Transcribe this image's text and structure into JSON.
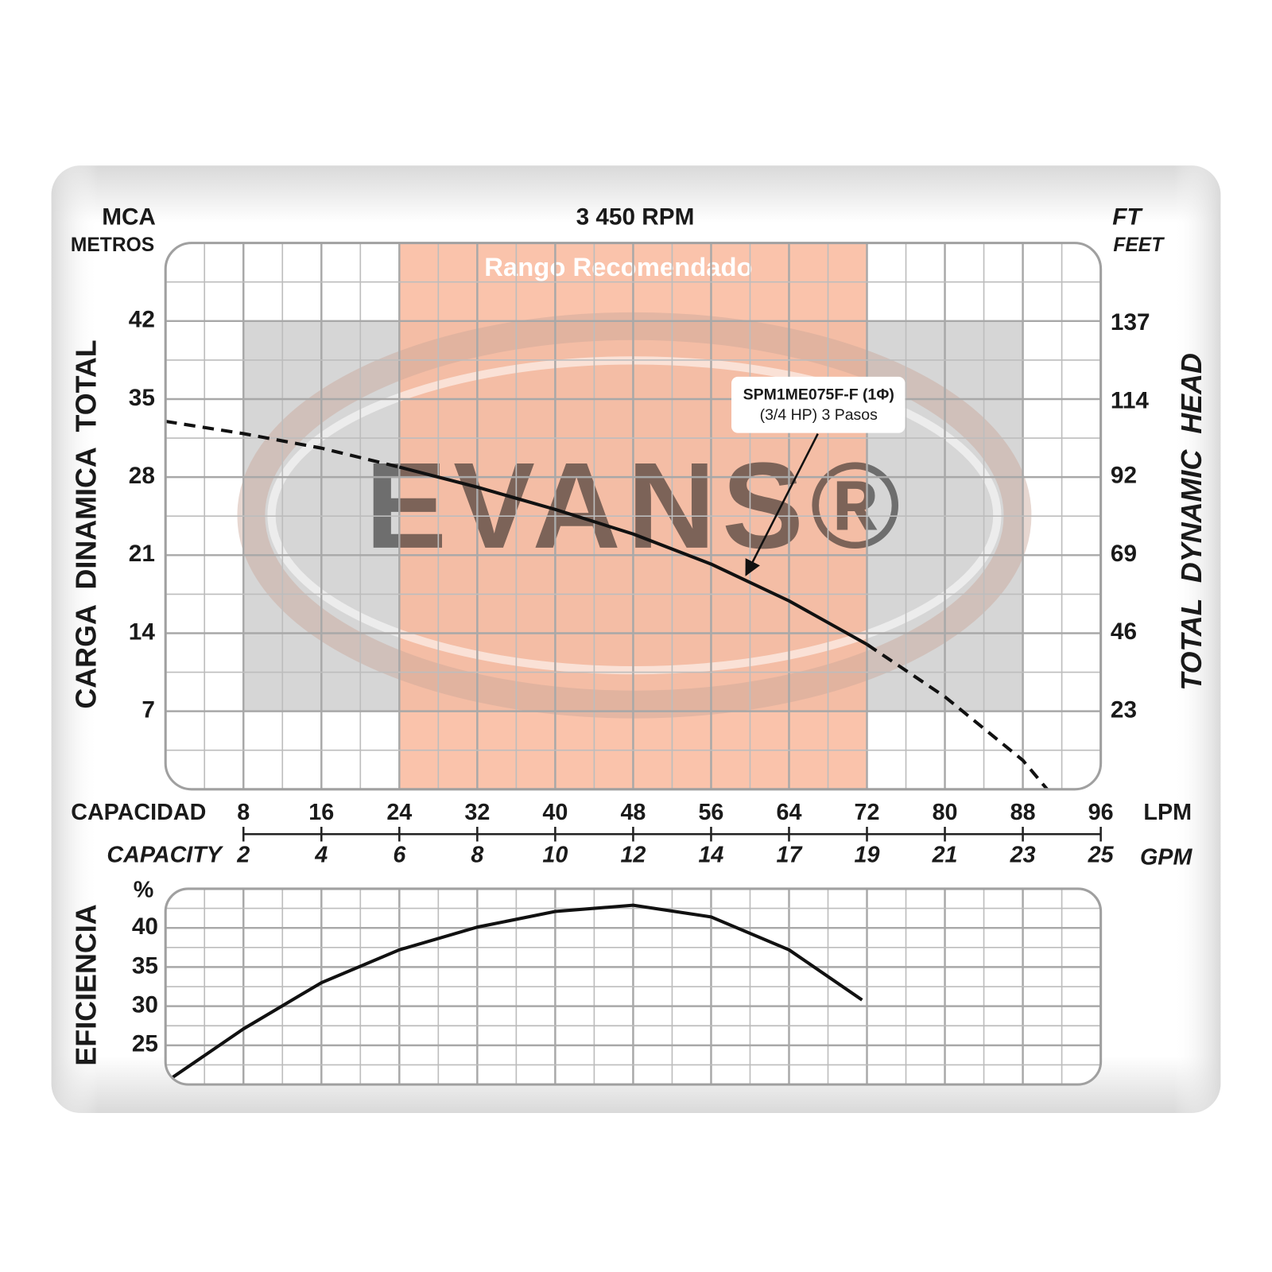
{
  "chart_data": [
    {
      "type": "line",
      "title": "3 450 RPM",
      "y_label_top": "MCA",
      "y_label_units": "METROS",
      "y_label": "CARGA  DINAMICA  TOTAL",
      "y2_label_top": "FT",
      "y2_label_units": "FEET",
      "y2_label": "TOTAL  DYNAMIC  HEAD",
      "x_label": "CAPACIDAD",
      "x_units": "LPM",
      "x2_label": "CAPACITY",
      "x2_units": "GPM",
      "xlim": [
        0,
        96
      ],
      "xticks": [
        8,
        16,
        24,
        32,
        40,
        48,
        56,
        64,
        72,
        80,
        88,
        96
      ],
      "x2ticks": [
        {
          "value": 8,
          "label": "2"
        },
        {
          "value": 16,
          "label": "4"
        },
        {
          "value": 24,
          "label": "6"
        },
        {
          "value": 32,
          "label": "8"
        },
        {
          "value": 40,
          "label": "10"
        },
        {
          "value": 48,
          "label": "12"
        },
        {
          "value": 56,
          "label": "14"
        },
        {
          "value": 64,
          "label": "17"
        },
        {
          "value": 72,
          "label": "19"
        },
        {
          "value": 80,
          "label": "21"
        },
        {
          "value": 88,
          "label": "23"
        },
        {
          "value": 96,
          "label": "25"
        }
      ],
      "ylim": [
        0,
        49
      ],
      "yticks": [
        7,
        14,
        21,
        28,
        35,
        42
      ],
      "y2lim": [
        0,
        160.8
      ],
      "y2ticks": [
        23,
        46,
        69,
        92,
        114,
        137
      ],
      "grid": true,
      "recommended_range": {
        "label": "Rango Recomendado",
        "x": [
          24,
          72
        ],
        "color": "#f9b89c"
      },
      "watermark": "EVANS®",
      "annotation": [
        "SPM1ME075F-F (1Φ)",
        "(3/4 HP)  3 Pasos"
      ],
      "series": [
        {
          "color": "#111111",
          "x": [
            0,
            8,
            16,
            24,
            32,
            40,
            48,
            56,
            64,
            72,
            80,
            88,
            90.5
          ],
          "values": [
            33,
            31.9,
            30.6,
            28.9,
            27.1,
            25.1,
            22.9,
            20.2,
            16.9,
            13,
            8.3,
            2.6,
            0
          ]
        }
      ]
    },
    {
      "type": "line",
      "y_label": "EFICIENCIA",
      "y_units": "%",
      "xlim": [
        0,
        96
      ],
      "ylim": [
        20,
        45
      ],
      "yticks": [
        25,
        30,
        35,
        40
      ],
      "grid": true,
      "series": [
        {
          "color": "#111111",
          "x": [
            0.6,
            8,
            16,
            24,
            32,
            40,
            48,
            56,
            64,
            71.5
          ],
          "values": [
            20.8,
            27.1,
            33,
            37.2,
            40.1,
            42.1,
            42.9,
            41.4,
            37.2,
            30.8
          ]
        }
      ]
    }
  ]
}
